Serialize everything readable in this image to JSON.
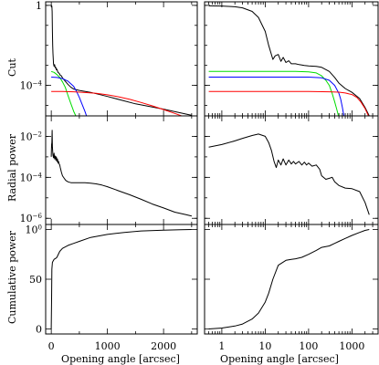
{
  "xlabels": {
    "left": "Opening angle [arcsec]",
    "right": "Opening angle [arcsec]"
  },
  "ylabels": {
    "row1": "Cut",
    "row2": "Radial power",
    "row3": "Cumulative power"
  },
  "chart_data": [
    {
      "type": "line",
      "panel": "row1-left",
      "xscale": "linear",
      "yscale": "log",
      "xlim": [
        -100,
        2600
      ],
      "ylim": [
        3e-06,
        1.5
      ],
      "xticks": [
        {
          "v": 0,
          "label": ""
        },
        {
          "v": 1000,
          "label": ""
        },
        {
          "v": 2000,
          "label": ""
        }
      ],
      "yticks": [
        {
          "v": 1,
          "label": "1"
        },
        {
          "v": 0.0001,
          "label": "10-4"
        }
      ],
      "series": [
        {
          "color": "#000000",
          "x": [
            0,
            5,
            10,
            15,
            20,
            25,
            30,
            40,
            50,
            60,
            70,
            80,
            90,
            100,
            120,
            140,
            160,
            180,
            200,
            250,
            300,
            350,
            400,
            500,
            700,
            1000,
            1500,
            2000,
            2500
          ],
          "y": [
            1.0,
            0.98,
            0.9,
            0.5,
            0.05,
            0.01,
            0.004,
            0.0012,
            0.0009,
            0.0011,
            0.00075,
            0.0008,
            0.0006,
            0.00065,
            0.00045,
            0.0004,
            0.00032,
            0.0003,
            0.00024,
            0.00016,
            0.00011,
            8e-05,
            6.6e-05,
            5.6e-05,
            4.5e-05,
            2.8e-05,
            1.2e-05,
            6.5e-06,
            3.2e-06
          ]
        },
        {
          "color": "#00dd00",
          "x": [
            0,
            50,
            100,
            150,
            200,
            250,
            300,
            350,
            400,
            450,
            500
          ],
          "y": [
            0.0005,
            0.00045,
            0.00035,
            0.00025,
            0.00015,
            8e-05,
            3e-05,
            1.2e-05,
            5e-06,
            2.5e-06,
            1.2e-06
          ]
        },
        {
          "color": "#0000ff",
          "x": [
            0,
            100,
            200,
            300,
            400,
            450,
            500,
            550,
            600,
            650
          ],
          "y": [
            0.00026,
            0.00025,
            0.00022,
            0.00016,
            9e-05,
            5e-05,
            2.5e-05,
            1.1e-05,
            5e-06,
            2e-06
          ]
        },
        {
          "color": "#ff0000",
          "x": [
            0,
            200,
            400,
            600,
            800,
            1000,
            1200,
            1400,
            1600,
            1800,
            2000,
            2200,
            2400,
            2550
          ],
          "y": [
            5e-05,
            5e-05,
            4.8e-05,
            4.4e-05,
            4e-05,
            3.4e-05,
            2.7e-05,
            2e-05,
            1.4e-05,
            9.5e-06,
            6.2e-06,
            4e-06,
            2.5e-06,
            1.8e-06
          ]
        }
      ]
    },
    {
      "type": "line",
      "panel": "row1-right",
      "xscale": "log",
      "yscale": "log",
      "xlim": [
        0.4,
        4000
      ],
      "ylim": [
        3e-06,
        1.5
      ],
      "xticks": [
        {
          "v": 1,
          "label": ""
        },
        {
          "v": 10,
          "label": ""
        },
        {
          "v": 100,
          "label": ""
        },
        {
          "v": 1000,
          "label": ""
        }
      ],
      "yticks": [
        {
          "v": 1,
          "label": ""
        },
        {
          "v": 0.0001,
          "label": ""
        }
      ],
      "series": [
        {
          "color": "#000000",
          "x": [
            0.5,
            1,
            2,
            3,
            5,
            7,
            10,
            12,
            15,
            17,
            20,
            23,
            26,
            30,
            35,
            40,
            50,
            60,
            70,
            80,
            100,
            150,
            200,
            300,
            400,
            500,
            700,
            1000,
            1500,
            2000,
            2500
          ],
          "y": [
            0.95,
            0.93,
            0.85,
            0.75,
            0.5,
            0.25,
            0.05,
            0.01,
            0.002,
            0.003,
            0.0035,
            0.0016,
            0.0025,
            0.0014,
            0.0017,
            0.0012,
            0.0012,
            0.0011,
            0.00105,
            0.001,
            0.00095,
            0.0009,
            0.0008,
            0.0005,
            0.00025,
            0.00013,
            7e-05,
            4.5e-05,
            2.2e-05,
            8e-06,
            3e-06
          ]
        },
        {
          "color": "#00dd00",
          "x": [
            0.5,
            10,
            50,
            100,
            150,
            200,
            250,
            300,
            350,
            400,
            450,
            500
          ],
          "y": [
            0.0005,
            0.0005,
            0.0005,
            0.00048,
            0.00042,
            0.0003,
            0.00018,
            0.0001,
            4e-05,
            1.5e-05,
            6e-06,
            2.5e-06
          ]
        },
        {
          "color": "#0000ff",
          "x": [
            0.5,
            10,
            100,
            200,
            300,
            400,
            500,
            550,
            600,
            650
          ],
          "y": [
            0.00026,
            0.00026,
            0.00026,
            0.00024,
            0.00018,
            0.0001,
            4e-05,
            2e-05,
            8e-06,
            3e-06
          ]
        },
        {
          "color": "#ff0000",
          "x": [
            0.5,
            10,
            100,
            300,
            500,
            700,
            1000,
            1300,
            1600,
            2000,
            2500
          ],
          "y": [
            5e-05,
            5e-05,
            5e-05,
            4.8e-05,
            4.6e-05,
            4.2e-05,
            3.5e-05,
            2.5e-05,
            1.5e-05,
            7e-06,
            2.5e-06
          ]
        }
      ]
    },
    {
      "type": "line",
      "panel": "row2-left",
      "xscale": "linear",
      "yscale": "log",
      "xlim": [
        -100,
        2600
      ],
      "ylim": [
        5e-07,
        0.1
      ],
      "xticks": [
        {
          "v": 0,
          "label": ""
        },
        {
          "v": 1000,
          "label": ""
        },
        {
          "v": 2000,
          "label": ""
        }
      ],
      "yticks": [
        {
          "v": 0.01,
          "label": "10-2"
        },
        {
          "v": 0.0001,
          "label": "10-4"
        },
        {
          "v": 1e-06,
          "label": "10-6"
        }
      ],
      "series": [
        {
          "color": "#000000",
          "x": [
            0,
            5,
            10,
            15,
            20,
            30,
            40,
            50,
            60,
            70,
            80,
            90,
            100,
            110,
            120,
            130,
            140,
            150,
            160,
            180,
            200,
            230,
            260,
            300,
            350,
            400,
            500,
            600,
            700,
            800,
            900,
            1000,
            1200,
            1400,
            1600,
            1800,
            2000,
            2200,
            2400,
            2500
          ],
          "y": [
            0.001,
            0.004,
            0.005,
            0.02,
            0.003,
            0.0012,
            0.0009,
            0.0015,
            0.0008,
            0.0011,
            0.0007,
            0.001,
            0.0006,
            0.0008,
            0.0005,
            0.0006,
            0.00045,
            0.0004,
            0.0003,
            0.00018,
            0.00012,
            9e-05,
            7e-05,
            6e-05,
            5.5e-05,
            5.5e-05,
            5.5e-05,
            5.5e-05,
            5.2e-05,
            4.8e-05,
            4.2e-05,
            3.5e-05,
            2.2e-05,
            1.4e-05,
            8.5e-06,
            5e-06,
            3.2e-06,
            2e-06,
            1.5e-06,
            1.3e-06
          ]
        }
      ]
    },
    {
      "type": "line",
      "panel": "row2-right",
      "xscale": "log",
      "yscale": "log",
      "xlim": [
        0.4,
        4000
      ],
      "ylim": [
        5e-07,
        0.1
      ],
      "xticks": [
        {
          "v": 1,
          "label": ""
        },
        {
          "v": 10,
          "label": ""
        },
        {
          "v": 100,
          "label": ""
        },
        {
          "v": 1000,
          "label": ""
        }
      ],
      "yticks": [
        {
          "v": 0.01,
          "label": ""
        },
        {
          "v": 0.0001,
          "label": ""
        },
        {
          "v": 1e-06,
          "label": ""
        }
      ],
      "series": [
        {
          "color": "#000000",
          "x": [
            0.5,
            1,
            2,
            3,
            5,
            7,
            10,
            12,
            14,
            16,
            18,
            20,
            23,
            26,
            30,
            35,
            40,
            45,
            50,
            60,
            70,
            80,
            90,
            100,
            120,
            150,
            180,
            200,
            250,
            300,
            350,
            400,
            500,
            700,
            1000,
            1500,
            2000,
            2500
          ],
          "y": [
            0.003,
            0.004,
            0.006,
            0.008,
            0.011,
            0.013,
            0.01,
            0.005,
            0.002,
            0.0006,
            0.0003,
            0.0007,
            0.0004,
            0.0008,
            0.0004,
            0.0007,
            0.00045,
            0.0006,
            0.00045,
            0.0006,
            0.0004,
            0.00055,
            0.0004,
            0.0005,
            0.00035,
            0.0004,
            0.00025,
            0.00012,
            8e-05,
            9e-05,
            0.0001,
            6e-05,
            4e-05,
            3e-05,
            2.8e-05,
            2e-05,
            6e-06,
            1.5e-06
          ]
        }
      ]
    },
    {
      "type": "line",
      "panel": "row3-left",
      "xscale": "linear",
      "yscale": "linear",
      "xlim": [
        -100,
        2600
      ],
      "ylim": [
        -5,
        105
      ],
      "xticks": [
        {
          "v": 0,
          "label": "0"
        },
        {
          "v": 1000,
          "label": "1000"
        },
        {
          "v": 2000,
          "label": "2000"
        }
      ],
      "yticks": [
        {
          "v": 0,
          "label": "0"
        },
        {
          "v": 50,
          "label": "50"
        },
        {
          "v": 100,
          "label": "100"
        }
      ],
      "series": [
        {
          "color": "#000000",
          "x": [
            0,
            5,
            10,
            20,
            30,
            50,
            80,
            100,
            150,
            200,
            300,
            400,
            500,
            700,
            1000,
            1300,
            1600,
            2000,
            2300,
            2500
          ],
          "y": [
            0,
            30,
            60,
            67,
            68,
            70,
            71,
            72,
            78,
            81,
            84,
            86,
            88,
            92,
            95,
            97,
            98.5,
            99.3,
            99.7,
            100
          ]
        }
      ]
    },
    {
      "type": "line",
      "panel": "row3-right",
      "xscale": "log",
      "yscale": "linear",
      "xlim": [
        0.4,
        4000
      ],
      "ylim": [
        -5,
        105
      ],
      "xticks": [
        {
          "v": 1,
          "label": "1"
        },
        {
          "v": 10,
          "label": "10"
        },
        {
          "v": 100,
          "label": "100"
        },
        {
          "v": 1000,
          "label": "1000"
        }
      ],
      "yticks": [
        {
          "v": 0,
          "label": ""
        },
        {
          "v": 50,
          "label": ""
        },
        {
          "v": 100,
          "label": ""
        }
      ],
      "series": [
        {
          "color": "#000000",
          "x": [
            0.5,
            1,
            2,
            3,
            5,
            7,
            10,
            12,
            15,
            20,
            30,
            40,
            50,
            70,
            100,
            150,
            200,
            300,
            400,
            500,
            700,
            1000,
            1500,
            2000,
            2500
          ],
          "y": [
            0,
            1,
            3,
            5,
            10,
            16,
            27,
            36,
            50,
            64,
            69,
            70,
            70.5,
            72,
            75,
            79,
            82,
            83.5,
            86,
            88,
            91,
            94,
            97,
            99,
            100
          ]
        }
      ]
    }
  ]
}
